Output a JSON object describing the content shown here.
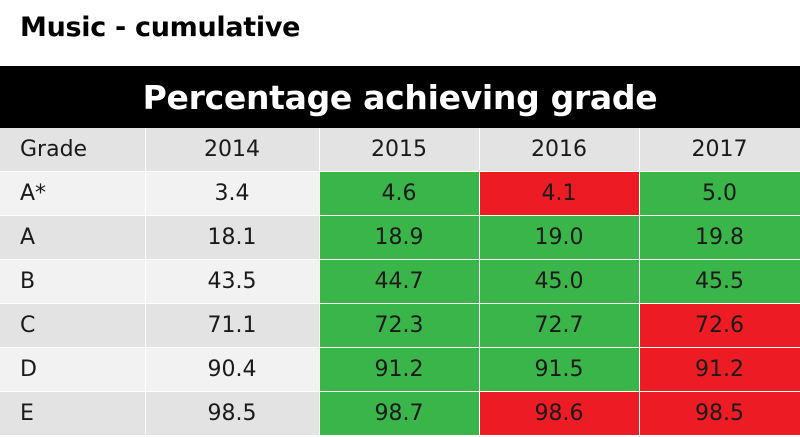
{
  "title": "Music - cumulative",
  "banner": "Percentage achieving grade",
  "colors": {
    "up": "#3ab54a",
    "down": "#ed1c24"
  },
  "chart_data": {
    "type": "table",
    "columns": [
      "Grade",
      "2014",
      "2015",
      "2016",
      "2017"
    ],
    "rows": [
      {
        "grade": "A*",
        "values": [
          "3.4",
          "4.6",
          "4.1",
          "5.0"
        ],
        "status": [
          "none",
          "up",
          "down",
          "up"
        ]
      },
      {
        "grade": "A",
        "values": [
          "18.1",
          "18.9",
          "19.0",
          "19.8"
        ],
        "status": [
          "none",
          "up",
          "up",
          "up"
        ]
      },
      {
        "grade": "B",
        "values": [
          "43.5",
          "44.7",
          "45.0",
          "45.5"
        ],
        "status": [
          "none",
          "up",
          "up",
          "up"
        ]
      },
      {
        "grade": "C",
        "values": [
          "71.1",
          "72.3",
          "72.7",
          "72.6"
        ],
        "status": [
          "none",
          "up",
          "up",
          "down"
        ]
      },
      {
        "grade": "D",
        "values": [
          "90.4",
          "91.2",
          "91.5",
          "91.2"
        ],
        "status": [
          "none",
          "up",
          "up",
          "down"
        ]
      },
      {
        "grade": "E",
        "values": [
          "98.5",
          "98.7",
          "98.6",
          "98.5"
        ],
        "status": [
          "none",
          "up",
          "down",
          "down"
        ]
      }
    ]
  }
}
